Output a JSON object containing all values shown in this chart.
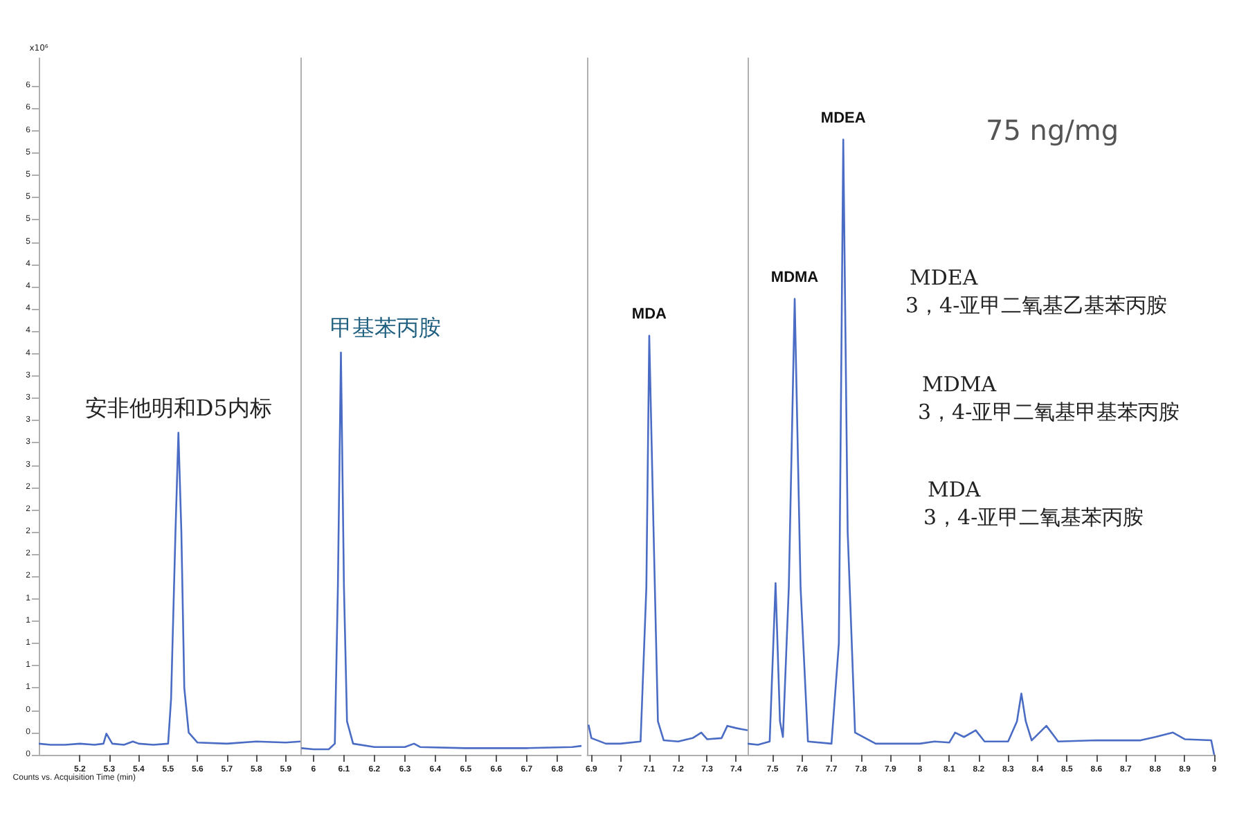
{
  "chart_data": [
    {
      "type": "line",
      "xlabel": "Counts vs. Acquisition Time (min)",
      "ylabel": "x10⁶",
      "xlim": [
        5.06,
        5.95
      ],
      "xticks": [
        5.2,
        5.3,
        5.4,
        5.5,
        5.6,
        5.7,
        5.8,
        5.9
      ],
      "ylim": [
        0,
        6.25
      ],
      "yticks": [
        {
          "value": 0,
          "label": "0"
        },
        {
          "value": 0.2,
          "label": "0"
        },
        {
          "value": 0.4,
          "label": "0"
        },
        {
          "value": 0.6,
          "label": "1"
        },
        {
          "value": 0.8,
          "label": "1"
        },
        {
          "value": 1,
          "label": "1"
        },
        {
          "value": 1.2,
          "label": "1"
        },
        {
          "value": 1.4,
          "label": "1"
        },
        {
          "value": 1.6,
          "label": "2"
        },
        {
          "value": 1.8,
          "label": "2"
        },
        {
          "value": 2,
          "label": "2"
        },
        {
          "value": 2.2,
          "label": "2"
        },
        {
          "value": 2.4,
          "label": "2"
        },
        {
          "value": 2.6,
          "label": "3"
        },
        {
          "value": 2.8,
          "label": "3"
        },
        {
          "value": 3,
          "label": "3"
        },
        {
          "value": 3.2,
          "label": "3"
        },
        {
          "value": 3.4,
          "label": "3"
        },
        {
          "value": 3.6,
          "label": "4"
        },
        {
          "value": 3.8,
          "label": "4"
        },
        {
          "value": 4,
          "label": "4"
        },
        {
          "value": 4.2,
          "label": "4"
        },
        {
          "value": 4.4,
          "label": "4"
        },
        {
          "value": 4.6,
          "label": "5"
        },
        {
          "value": 4.8,
          "label": "5"
        },
        {
          "value": 5,
          "label": "5"
        },
        {
          "value": 5.2,
          "label": "5"
        },
        {
          "value": 5.4,
          "label": "5"
        },
        {
          "value": 5.6,
          "label": "6"
        },
        {
          "value": 5.8,
          "label": "6"
        },
        {
          "value": 6,
          "label": "6"
        }
      ],
      "annotations": [
        {
          "text": "安非他明和D5内标",
          "x": 5.535,
          "y": 2.89
        }
      ],
      "series": [
        {
          "color": "#4a6cc4",
          "x": [
            5.06,
            5.1,
            5.15,
            5.2,
            5.25,
            5.28,
            5.29,
            5.31,
            5.35,
            5.38,
            5.4,
            5.45,
            5.5,
            5.51,
            5.525,
            5.535,
            5.545,
            5.555,
            5.57,
            5.6,
            5.7,
            5.8,
            5.9,
            5.95
          ],
          "values": [
            0.1,
            0.09,
            0.09,
            0.1,
            0.09,
            0.1,
            0.19,
            0.1,
            0.09,
            0.12,
            0.1,
            0.09,
            0.1,
            0.5,
            2.0,
            2.89,
            2.0,
            0.6,
            0.2,
            0.11,
            0.1,
            0.12,
            0.11,
            0.12
          ]
        }
      ]
    },
    {
      "type": "line",
      "tick_labels": "x",
      "xlim": [
        5.957,
        6.88
      ],
      "xticks": [
        6,
        6.1,
        6.2,
        6.3,
        6.4,
        6.5,
        6.6,
        6.7,
        6.8
      ],
      "ylim": [
        0,
        6.25
      ],
      "annotations": [
        {
          "text": "甲基苯丙胺",
          "x": 6.09,
          "y": 3.61
        }
      ],
      "series": [
        {
          "color": "#4a6cc4",
          "x": [
            5.96,
            6.0,
            6.05,
            6.07,
            6.08,
            6.09,
            6.1,
            6.11,
            6.13,
            6.2,
            6.3,
            6.33,
            6.35,
            6.5,
            6.7,
            6.85,
            6.88
          ],
          "values": [
            0.06,
            0.05,
            0.05,
            0.1,
            1.5,
            3.61,
            1.5,
            0.3,
            0.1,
            0.07,
            0.07,
            0.1,
            0.07,
            0.06,
            0.06,
            0.07,
            0.08
          ]
        }
      ]
    },
    {
      "type": "line",
      "tick_labels": "x",
      "xlim": [
        6.886,
        7.44
      ],
      "xticks": [
        6.9,
        7,
        7.1,
        7.2,
        7.3,
        7.4
      ],
      "ylim": [
        0,
        6.25
      ],
      "annotations": [
        {
          "text": "MDA",
          "x": 7.1,
          "y": 3.76
        }
      ],
      "series": [
        {
          "color": "#4a6cc4",
          "x": [
            6.89,
            6.9,
            6.95,
            7.0,
            7.07,
            7.09,
            7.1,
            7.115,
            7.13,
            7.15,
            7.2,
            7.25,
            7.28,
            7.3,
            7.35,
            7.37,
            7.4,
            7.42,
            7.44
          ],
          "values": [
            0.27,
            0.15,
            0.1,
            0.1,
            0.12,
            1.5,
            3.76,
            2.0,
            0.3,
            0.13,
            0.12,
            0.15,
            0.2,
            0.14,
            0.15,
            0.26,
            0.24,
            0.23,
            0.22
          ]
        }
      ]
    },
    {
      "type": "line",
      "tick_labels": "x",
      "xlim": [
        7.415,
        9
      ],
      "xticks": [
        7.5,
        7.6,
        7.7,
        7.8,
        7.9,
        8,
        8.1,
        8.2,
        8.3,
        8.4,
        8.5,
        8.6,
        8.7,
        8.8,
        8.9,
        9
      ],
      "ylim": [
        0,
        6.25
      ],
      "annotations": [
        {
          "text": "MDMA",
          "x": 7.575,
          "y": 4.09
        },
        {
          "text": "MDEA",
          "x": 7.74,
          "y": 5.52
        },
        "75 ng/mg",
        "MDEA\n3，4-亚甲二氧基乙基苯丙胺",
        "MDMA\n3，4-亚甲二氧基甲基苯丙胺",
        "MDA\n3，4-亚甲二氧基苯丙胺"
      ],
      "series": [
        {
          "color": "#4a6cc4",
          "x": [
            7.415,
            7.45,
            7.49,
            7.51,
            7.525,
            7.535,
            7.555,
            7.575,
            7.595,
            7.62,
            7.7,
            7.725,
            7.74,
            7.755,
            7.78,
            7.85,
            8.0,
            8.05,
            8.1,
            8.12,
            8.15,
            8.19,
            8.22,
            8.3,
            8.33,
            8.345,
            8.36,
            8.38,
            8.43,
            8.47,
            8.6,
            8.75,
            8.8,
            8.86,
            8.9,
            8.99,
            9.0
          ],
          "values": [
            0.1,
            0.09,
            0.12,
            1.54,
            0.3,
            0.16,
            1.5,
            4.09,
            1.5,
            0.12,
            0.1,
            1.0,
            5.52,
            2.0,
            0.2,
            0.1,
            0.1,
            0.12,
            0.11,
            0.2,
            0.16,
            0.22,
            0.12,
            0.12,
            0.3,
            0.55,
            0.3,
            0.13,
            0.26,
            0.12,
            0.13,
            0.13,
            0.16,
            0.2,
            0.14,
            0.13,
            0.0
          ]
        }
      ]
    }
  ]
}
